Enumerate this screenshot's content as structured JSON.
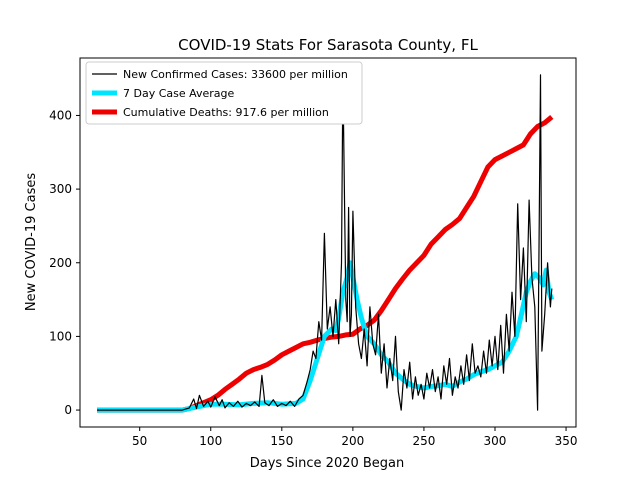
{
  "chart_data": {
    "type": "line",
    "title": "COVID-19 Stats For Sarasota County, FL",
    "xlabel": "Days Since 2020 Began",
    "ylabel": "New COVID-19 Cases",
    "xlim": [
      8,
      357
    ],
    "ylim": [
      -23,
      478
    ],
    "xticks": [
      50,
      100,
      150,
      200,
      250,
      300,
      350
    ],
    "yticks": [
      0,
      100,
      200,
      300,
      400
    ],
    "grid": false,
    "legend_position": "top-left",
    "series": [
      {
        "name": "New Confirmed Cases: 33600 per million",
        "color": "#000000",
        "style": "thin",
        "points": [
          [
            20,
            0
          ],
          [
            60,
            0
          ],
          [
            80,
            0
          ],
          [
            85,
            3
          ],
          [
            88,
            15
          ],
          [
            90,
            2
          ],
          [
            92,
            20
          ],
          [
            95,
            5
          ],
          [
            98,
            12
          ],
          [
            100,
            4
          ],
          [
            103,
            18
          ],
          [
            106,
            6
          ],
          [
            108,
            14
          ],
          [
            110,
            3
          ],
          [
            113,
            10
          ],
          [
            116,
            5
          ],
          [
            119,
            12
          ],
          [
            122,
            4
          ],
          [
            125,
            9
          ],
          [
            128,
            6
          ],
          [
            131,
            11
          ],
          [
            134,
            5
          ],
          [
            136,
            47
          ],
          [
            138,
            10
          ],
          [
            141,
            6
          ],
          [
            144,
            14
          ],
          [
            147,
            5
          ],
          [
            150,
            9
          ],
          [
            153,
            6
          ],
          [
            156,
            12
          ],
          [
            159,
            5
          ],
          [
            162,
            15
          ],
          [
            165,
            20
          ],
          [
            168,
            40
          ],
          [
            170,
            55
          ],
          [
            172,
            80
          ],
          [
            174,
            70
          ],
          [
            176,
            120
          ],
          [
            178,
            95
          ],
          [
            180,
            240
          ],
          [
            182,
            110
          ],
          [
            184,
            140
          ],
          [
            186,
            100
          ],
          [
            188,
            150
          ],
          [
            190,
            90
          ],
          [
            192,
            200
          ],
          [
            193,
            455
          ],
          [
            195,
            150
          ],
          [
            196,
            120
          ],
          [
            197,
            275
          ],
          [
            198,
            100
          ],
          [
            199,
            130
          ],
          [
            200,
            270
          ],
          [
            202,
            140
          ],
          [
            204,
            90
          ],
          [
            206,
            70
          ],
          [
            208,
            110
          ],
          [
            210,
            60
          ],
          [
            212,
            140
          ],
          [
            214,
            90
          ],
          [
            216,
            75
          ],
          [
            218,
            130
          ],
          [
            220,
            50
          ],
          [
            222,
            90
          ],
          [
            224,
            30
          ],
          [
            226,
            70
          ],
          [
            228,
            40
          ],
          [
            230,
            100
          ],
          [
            232,
            25
          ],
          [
            234,
            0
          ],
          [
            236,
            55
          ],
          [
            238,
            30
          ],
          [
            240,
            65
          ],
          [
            242,
            15
          ],
          [
            244,
            45
          ],
          [
            246,
            20
          ],
          [
            248,
            35
          ],
          [
            250,
            15
          ],
          [
            252,
            50
          ],
          [
            254,
            30
          ],
          [
            256,
            55
          ],
          [
            258,
            25
          ],
          [
            260,
            45
          ],
          [
            262,
            15
          ],
          [
            264,
            60
          ],
          [
            266,
            35
          ],
          [
            268,
            70
          ],
          [
            270,
            20
          ],
          [
            272,
            45
          ],
          [
            274,
            30
          ],
          [
            276,
            60
          ],
          [
            278,
            35
          ],
          [
            280,
            75
          ],
          [
            282,
            40
          ],
          [
            284,
            90
          ],
          [
            286,
            50
          ],
          [
            288,
            60
          ],
          [
            290,
            45
          ],
          [
            292,
            80
          ],
          [
            294,
            50
          ],
          [
            296,
            95
          ],
          [
            298,
            60
          ],
          [
            300,
            100
          ],
          [
            302,
            55
          ],
          [
            304,
            115
          ],
          [
            306,
            50
          ],
          [
            308,
            130
          ],
          [
            310,
            80
          ],
          [
            312,
            160
          ],
          [
            314,
            100
          ],
          [
            316,
            280
          ],
          [
            318,
            150
          ],
          [
            320,
            220
          ],
          [
            322,
            120
          ],
          [
            324,
            285
          ],
          [
            326,
            180
          ],
          [
            328,
            140
          ],
          [
            330,
            0
          ],
          [
            332,
            455
          ],
          [
            333,
            80
          ],
          [
            335,
            130
          ],
          [
            337,
            200
          ],
          [
            339,
            140
          ],
          [
            340,
            165
          ]
        ]
      },
      {
        "name": "7 Day Case Average",
        "color": "#00e5ff",
        "style": "thick",
        "points": [
          [
            20,
            0
          ],
          [
            80,
            0
          ],
          [
            90,
            4
          ],
          [
            100,
            8
          ],
          [
            110,
            8
          ],
          [
            120,
            7
          ],
          [
            130,
            9
          ],
          [
            140,
            10
          ],
          [
            150,
            8
          ],
          [
            160,
            9
          ],
          [
            165,
            15
          ],
          [
            170,
            40
          ],
          [
            175,
            70
          ],
          [
            180,
            100
          ],
          [
            185,
            110
          ],
          [
            188,
            108
          ],
          [
            190,
            125
          ],
          [
            193,
            160
          ],
          [
            196,
            180
          ],
          [
            198,
            200
          ],
          [
            200,
            180
          ],
          [
            203,
            150
          ],
          [
            206,
            125
          ],
          [
            210,
            100
          ],
          [
            215,
            90
          ],
          [
            220,
            75
          ],
          [
            225,
            65
          ],
          [
            230,
            50
          ],
          [
            235,
            42
          ],
          [
            240,
            35
          ],
          [
            245,
            32
          ],
          [
            250,
            30
          ],
          [
            255,
            32
          ],
          [
            260,
            33
          ],
          [
            265,
            35
          ],
          [
            270,
            32
          ],
          [
            275,
            38
          ],
          [
            280,
            42
          ],
          [
            285,
            48
          ],
          [
            290,
            52
          ],
          [
            295,
            55
          ],
          [
            300,
            60
          ],
          [
            305,
            65
          ],
          [
            310,
            80
          ],
          [
            315,
            100
          ],
          [
            318,
            125
          ],
          [
            322,
            160
          ],
          [
            325,
            175
          ],
          [
            328,
            185
          ],
          [
            331,
            180
          ],
          [
            334,
            170
          ],
          [
            336,
            190
          ],
          [
            338,
            160
          ],
          [
            340,
            150
          ]
        ]
      },
      {
        "name": "Cumulative Deaths: 917.6 per million",
        "color": "#ee0000",
        "style": "thick",
        "points": [
          [
            20,
            0
          ],
          [
            80,
            0
          ],
          [
            85,
            2
          ],
          [
            90,
            6
          ],
          [
            95,
            10
          ],
          [
            100,
            14
          ],
          [
            105,
            20
          ],
          [
            110,
            28
          ],
          [
            115,
            35
          ],
          [
            120,
            42
          ],
          [
            125,
            50
          ],
          [
            130,
            55
          ],
          [
            135,
            58
          ],
          [
            140,
            62
          ],
          [
            145,
            68
          ],
          [
            150,
            75
          ],
          [
            155,
            80
          ],
          [
            160,
            85
          ],
          [
            165,
            90
          ],
          [
            170,
            92
          ],
          [
            175,
            95
          ],
          [
            180,
            97
          ],
          [
            185,
            99
          ],
          [
            190,
            100
          ],
          [
            195,
            102
          ],
          [
            200,
            103
          ],
          [
            205,
            110
          ],
          [
            210,
            115
          ],
          [
            215,
            122
          ],
          [
            220,
            135
          ],
          [
            225,
            150
          ],
          [
            230,
            165
          ],
          [
            235,
            178
          ],
          [
            240,
            190
          ],
          [
            245,
            200
          ],
          [
            250,
            210
          ],
          [
            255,
            225
          ],
          [
            260,
            235
          ],
          [
            265,
            245
          ],
          [
            270,
            252
          ],
          [
            275,
            260
          ],
          [
            280,
            275
          ],
          [
            285,
            290
          ],
          [
            290,
            310
          ],
          [
            295,
            330
          ],
          [
            300,
            340
          ],
          [
            305,
            345
          ],
          [
            310,
            350
          ],
          [
            315,
            355
          ],
          [
            320,
            360
          ],
          [
            325,
            375
          ],
          [
            330,
            385
          ],
          [
            335,
            390
          ],
          [
            340,
            398
          ]
        ]
      }
    ]
  }
}
